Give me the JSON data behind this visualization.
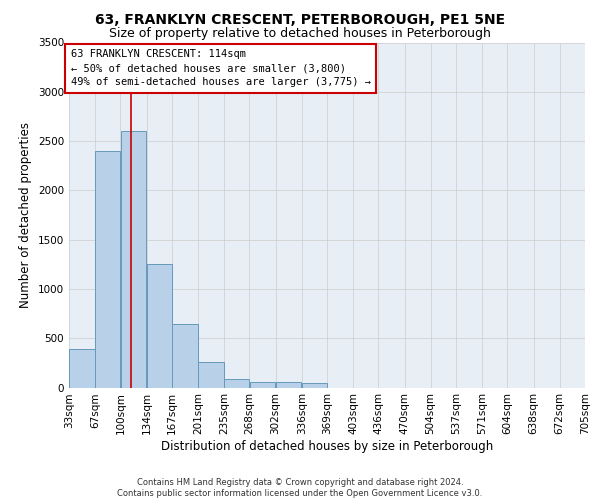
{
  "title": "63, FRANKLYN CRESCENT, PETERBOROUGH, PE1 5NE",
  "subtitle": "Size of property relative to detached houses in Peterborough",
  "xlabel": "Distribution of detached houses by size in Peterborough",
  "ylabel": "Number of detached properties",
  "footer_line1": "Contains HM Land Registry data © Crown copyright and database right 2024.",
  "footer_line2": "Contains public sector information licensed under the Open Government Licence v3.0.",
  "bar_edges": [
    33,
    67,
    100,
    134,
    167,
    201,
    235,
    268,
    302,
    336,
    369,
    403,
    436,
    470,
    504,
    537,
    571,
    604,
    638,
    672,
    705
  ],
  "bar_heights": [
    390,
    2400,
    2600,
    1250,
    640,
    260,
    90,
    60,
    55,
    45,
    0,
    0,
    0,
    0,
    0,
    0,
    0,
    0,
    0,
    0
  ],
  "bar_color": "#b8d0e8",
  "bar_edgecolor": "#6699bb",
  "bar_linewidth": 0.7,
  "vline_x": 114,
  "vline_color": "#cc0000",
  "vline_linewidth": 1.2,
  "annotation_line1": "63 FRANKLYN CRESCENT: 114sqm",
  "annotation_line2": "← 50% of detached houses are smaller (3,800)",
  "annotation_line3": "49% of semi-detached houses are larger (3,775) →",
  "annotation_box_edgecolor": "#cc0000",
  "annotation_fontsize": 7.5,
  "ylim": [
    0,
    3500
  ],
  "yticks": [
    0,
    500,
    1000,
    1500,
    2000,
    2500,
    3000,
    3500
  ],
  "grid_color": "#cccccc",
  "bg_color": "#e8eef5",
  "title_fontsize": 10,
  "subtitle_fontsize": 9,
  "tick_fontsize": 7.5,
  "ylabel_fontsize": 8.5,
  "xlabel_fontsize": 8.5,
  "footer_fontsize": 6.0
}
